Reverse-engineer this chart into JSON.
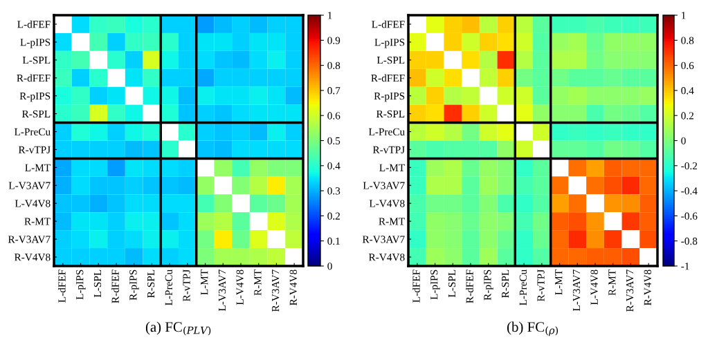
{
  "chart_data": [
    {
      "type": "heatmap",
      "title": "(a) FC$_{(PLV)}$",
      "categories": [
        "L-dFEF",
        "L-pIPS",
        "L-SPL",
        "R-dFEF",
        "R-pIPS",
        "R-SPL",
        "L-PreCu",
        "R-vTPJ",
        "L-MT",
        "L-V3AV7",
        "L-V4V8",
        "R-MT",
        "R-V3AV7",
        "R-V4V8"
      ],
      "y_categories": [
        "L-dFEF",
        "L-pIPS",
        "L-SPL",
        "R-dFEF",
        "R-pIPS",
        "R-SPL",
        "L-PreCu",
        "R-vTPJ",
        "L-MT",
        "L-V3AV7",
        "L-V4V8",
        "R-MT",
        "R-V3AV7",
        "R-V4V8"
      ],
      "cells": [
        [
          null,
          0.34,
          0.41,
          0.42,
          0.38,
          0.4,
          0.33,
          0.33,
          0.28,
          0.31,
          0.33,
          0.31,
          0.33,
          0.33
        ],
        [
          0.34,
          null,
          0.43,
          0.33,
          0.41,
          0.42,
          0.4,
          0.33,
          0.35,
          0.35,
          0.33,
          0.35,
          0.35,
          0.33
        ],
        [
          0.41,
          0.43,
          null,
          0.4,
          0.33,
          0.61,
          0.37,
          0.33,
          0.34,
          0.32,
          0.31,
          0.34,
          0.36,
          0.33
        ],
        [
          0.42,
          0.33,
          0.4,
          null,
          0.35,
          0.41,
          0.33,
          0.33,
          0.29,
          0.33,
          0.33,
          0.33,
          0.33,
          0.33
        ],
        [
          0.38,
          0.41,
          0.33,
          0.35,
          null,
          0.37,
          0.37,
          0.31,
          0.36,
          0.35,
          0.35,
          0.36,
          0.35,
          0.31
        ],
        [
          0.4,
          0.42,
          0.61,
          0.41,
          0.37,
          null,
          0.39,
          0.32,
          0.33,
          0.32,
          0.34,
          0.35,
          0.35,
          0.35
        ],
        [
          0.33,
          0.39,
          0.37,
          0.33,
          0.37,
          0.39,
          null,
          0.4,
          0.33,
          0.32,
          0.33,
          0.31,
          0.36,
          0.33
        ],
        [
          0.33,
          0.33,
          0.33,
          0.33,
          0.31,
          0.32,
          0.4,
          null,
          0.32,
          0.31,
          0.34,
          0.34,
          0.34,
          0.34
        ],
        [
          0.29,
          0.34,
          0.34,
          0.28,
          0.35,
          0.34,
          0.34,
          0.33,
          null,
          0.53,
          0.43,
          0.53,
          0.5,
          0.5
        ],
        [
          0.3,
          0.34,
          0.32,
          0.32,
          0.33,
          0.32,
          0.32,
          0.31,
          0.53,
          null,
          0.51,
          0.57,
          0.66,
          0.55
        ],
        [
          0.32,
          0.32,
          0.3,
          0.32,
          0.34,
          0.34,
          0.34,
          0.34,
          0.43,
          0.51,
          null,
          0.46,
          0.48,
          0.55
        ],
        [
          0.31,
          0.35,
          0.35,
          0.33,
          0.36,
          0.36,
          0.32,
          0.34,
          0.54,
          0.57,
          0.46,
          null,
          0.62,
          0.56
        ],
        [
          0.33,
          0.34,
          0.36,
          0.33,
          0.34,
          0.36,
          0.36,
          0.34,
          0.49,
          0.66,
          0.48,
          0.62,
          null,
          0.58
        ],
        [
          0.33,
          0.33,
          0.33,
          0.33,
          0.31,
          0.34,
          0.33,
          0.34,
          0.5,
          0.55,
          0.55,
          0.56,
          0.58,
          null
        ]
      ],
      "clim": [
        0,
        1
      ],
      "cticks": [
        0,
        0.1,
        0.2,
        0.3,
        0.4,
        0.5,
        0.6,
        0.7,
        0.8,
        0.9,
        1
      ]
    },
    {
      "type": "heatmap",
      "title": "(b) FC$_{(ρ)}$",
      "categories": [
        "L-dFEF",
        "L-pIPS",
        "L-SPL",
        "R-dFEF",
        "R-pIPS",
        "R-SPL",
        "L-PreCu",
        "R-vTPJ",
        "L-MT",
        "L-V3AV7",
        "L-V4V8",
        "R-MT",
        "R-V3AV7",
        "R-V4V8"
      ],
      "y_categories": [
        "L-dFEF",
        "L-pIPS",
        "L-SPL",
        "R-dFEF",
        "R-pIPS",
        "R-SPL",
        "L-PreCu",
        "R-vTPJ",
        "L-MT",
        "L-V3AV7",
        "L-V4V8",
        "R-MT",
        "R-V3AV7",
        "R-V4V8"
      ],
      "cells": [
        [
          null,
          0.25,
          0.38,
          0.42,
          0.15,
          0.38,
          0.15,
          -0.08,
          -0.15,
          -0.15,
          -0.12,
          -0.15,
          -0.17,
          -0.15
        ],
        [
          0.25,
          null,
          0.38,
          0.2,
          0.38,
          0.35,
          0.2,
          -0.1,
          0.07,
          0.1,
          -0.05,
          0.05,
          0.05,
          0.05
        ],
        [
          0.38,
          0.38,
          null,
          0.35,
          0.14,
          0.72,
          0.14,
          -0.08,
          0.12,
          0.12,
          -0.03,
          0.03,
          0.03,
          0.03
        ],
        [
          0.42,
          0.2,
          0.35,
          null,
          0.17,
          0.38,
          -0.02,
          -0.08,
          -0.03,
          -0.08,
          -0.08,
          -0.05,
          -0.08,
          -0.08
        ],
        [
          0.15,
          0.38,
          0.14,
          0.17,
          null,
          0.2,
          0.2,
          -0.08,
          0.06,
          0.1,
          0.04,
          0.04,
          0.04,
          0.07
        ],
        [
          0.38,
          0.35,
          0.72,
          0.38,
          0.2,
          null,
          0.25,
          0.05,
          0.03,
          0.03,
          -0.12,
          -0.02,
          -0.05,
          -0.1
        ],
        [
          0.15,
          0.2,
          0.14,
          -0.02,
          0.2,
          0.25,
          null,
          0.2,
          -0.18,
          -0.16,
          -0.18,
          -0.16,
          -0.18,
          -0.18
        ],
        [
          -0.08,
          -0.12,
          -0.1,
          -0.1,
          -0.1,
          0.05,
          0.2,
          null,
          -0.07,
          -0.07,
          -0.1,
          -0.03,
          -0.05,
          -0.1
        ],
        [
          -0.16,
          0.08,
          0.12,
          -0.05,
          0.06,
          0.02,
          -0.18,
          -0.08,
          null,
          0.58,
          0.48,
          0.62,
          0.6,
          0.6
        ],
        [
          -0.16,
          0.12,
          0.12,
          -0.08,
          0.08,
          0.02,
          -0.14,
          -0.08,
          0.58,
          null,
          0.58,
          0.65,
          0.73,
          0.6
        ],
        [
          -0.12,
          -0.03,
          -0.03,
          -0.08,
          0.02,
          -0.12,
          -0.18,
          -0.1,
          0.48,
          0.58,
          null,
          0.5,
          0.52,
          0.62
        ],
        [
          -0.14,
          0.05,
          0.03,
          -0.05,
          0.04,
          0.01,
          -0.14,
          -0.03,
          0.62,
          0.65,
          0.5,
          null,
          0.7,
          0.62
        ],
        [
          -0.18,
          0.05,
          0.03,
          -0.08,
          0.04,
          -0.05,
          -0.18,
          -0.05,
          0.6,
          0.73,
          0.52,
          0.7,
          null,
          0.65
        ],
        [
          -0.14,
          0.08,
          0.04,
          -0.08,
          0.08,
          -0.08,
          -0.18,
          -0.1,
          0.6,
          0.6,
          0.62,
          0.62,
          0.65,
          null
        ]
      ],
      "clim": [
        -1,
        1
      ],
      "cticks": [
        -1,
        -0.8,
        -0.6,
        -0.4,
        -0.2,
        0,
        0.2,
        0.4,
        0.6,
        0.8,
        1
      ]
    }
  ]
}
